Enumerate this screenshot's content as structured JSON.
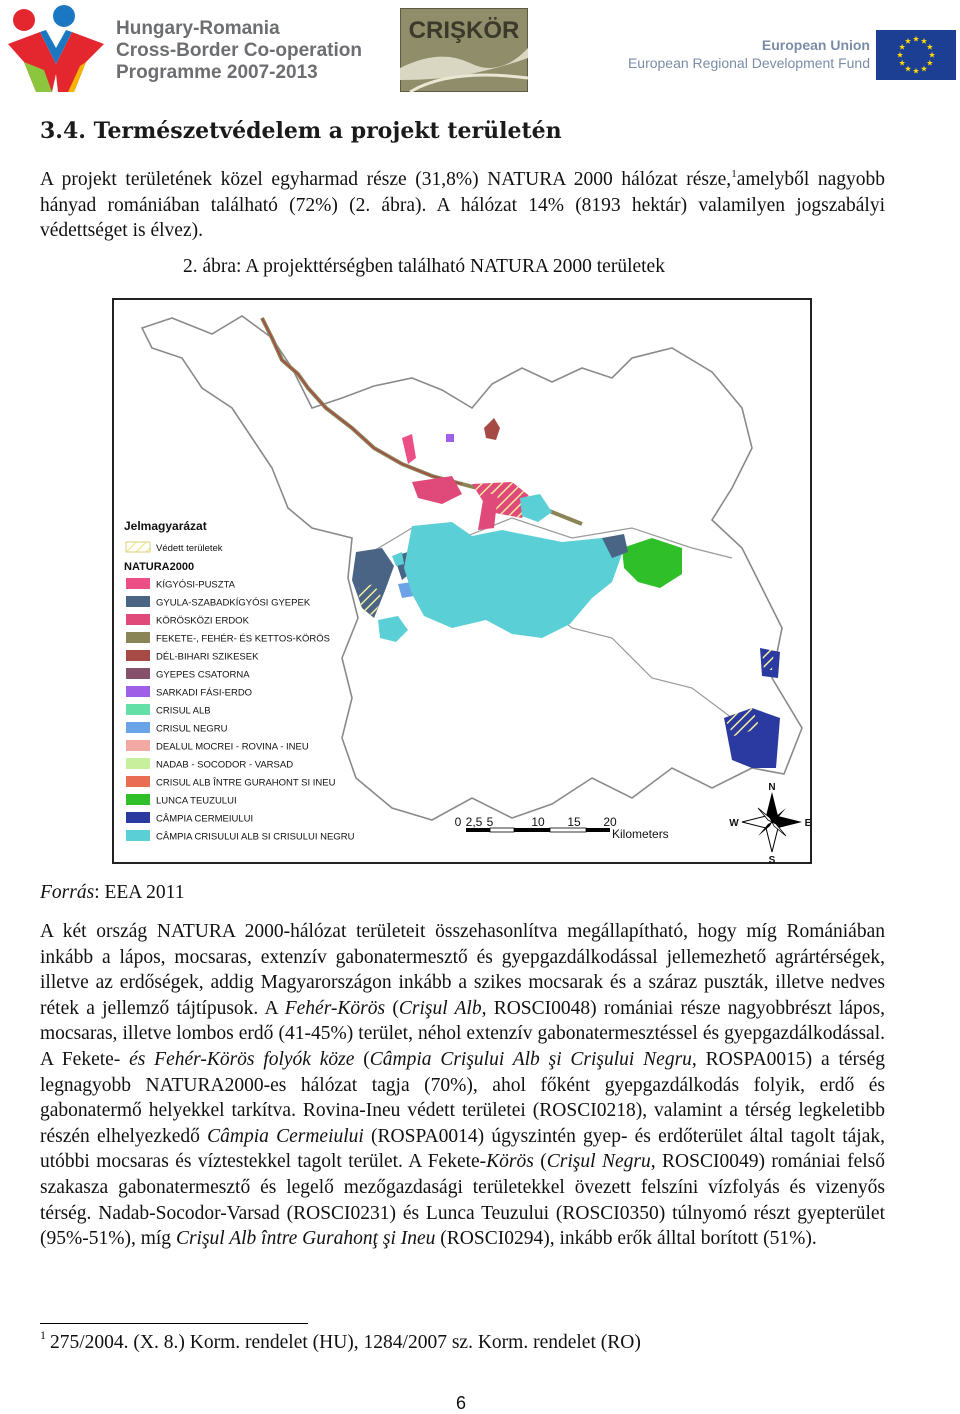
{
  "header": {
    "programme_lines": [
      "Hungary-Romania",
      "Cross-Border Co-operation",
      "Programme 2007-2013"
    ],
    "criskor_logo": "CRIŞKÖR",
    "eu_line1": "European Union",
    "eu_line2": "European Regional Development Fund",
    "icons": [
      "hungary-romania-programme-logo",
      "criskor-logo",
      "eu-flag-icon"
    ],
    "colors": {
      "hr_red": "#e4262f",
      "hr_blue": "#1a78c2",
      "hr_green": "#8cc63f",
      "hr_yellow": "#f5b400",
      "eu_blue": "#1c3f94",
      "eu_star": "#ffdd00"
    }
  },
  "section": {
    "number_title": "3.4. Természetvédelem a projekt területén"
  },
  "paragraph1": {
    "part1": "A projekt területének közel egyharmad része (31,8%) NATURA 2000 hálózat része,",
    "footnote_ref": "1",
    "part2": "amelyből nagyobb hányad romániában található (72%) (2. ábra). A hálózat 14% (8193 hektár) valamilyen jogszabályi védettséget is élvez)."
  },
  "figure": {
    "caption": "2. ábra: A projekttérségben található NATURA 2000 területek",
    "legend": {
      "title": "Jelmagyarázat",
      "protected_label": "Védett területek",
      "natura_title": "NATURA2000",
      "items": [
        {
          "label": "KÍGYÓSI-PUSZTA",
          "color": "#ec4f86"
        },
        {
          "label": "GYULA-SZABADKÍGYÓSI GYEPEK",
          "color": "#4a6485"
        },
        {
          "label": "KÖRÖSKÖZI ERDOK",
          "color": "#e04a7a"
        },
        {
          "label": "FEKETE-, FEHÉR- ÉS KETTOS-KÖRÖS",
          "color": "#8a8557"
        },
        {
          "label": "DÉL-BIHARI SZIKESEK",
          "color": "#a64a45"
        },
        {
          "label": "GYEPES CSATORNA",
          "color": "#84506a"
        },
        {
          "label": "SARKADI FÁSI-ERDO",
          "color": "#9f5fe6"
        },
        {
          "label": "CRISUL ALB",
          "color": "#64e0a6"
        },
        {
          "label": "CRISUL NEGRU",
          "color": "#6aa3e8"
        },
        {
          "label": "DEALUL MOCREI - ROVINA - INEU",
          "color": "#f2a9a3"
        },
        {
          "label": "NADAB - SOCODOR - VARSAD",
          "color": "#c8ef9b"
        },
        {
          "label": "CRISUL ALB ÎNTRE GURAHONT SI INEU",
          "color": "#e86d52"
        },
        {
          "label": "LUNCA TEUZULUI",
          "color": "#2fbf29"
        },
        {
          "label": "CÂMPIA CERMEIULUI",
          "color": "#2b3aa0"
        },
        {
          "label": "CÂMPIA CRISULUI ALB SI CRISULUI NEGRU",
          "color": "#5bcfd6"
        }
      ]
    },
    "scale": {
      "ticks": [
        "0",
        "2,5",
        "5",
        "10",
        "15",
        "20"
      ],
      "unit": "Kilometers"
    },
    "compass": {
      "n": "N",
      "s": "S",
      "e": "E",
      "w": "W"
    }
  },
  "source": {
    "label": "Forrás",
    "value": ": EEA 2011"
  },
  "paragraph2": [
    {
      "t": "A két ország NATURA 2000-hálózat területeit összehasonlítva megállapítható, hogy míg Romániában inkább a lápos, mocsaras, extenzív gabonatermesztő és gyepgazdálkodással jellemezhető agrártérségek, illetve az erdőségek, addig Magyarországon inkább a szikes mocsarak és a száraz puszták, illetve nedves rétek a jellemző tájtípusok. A ",
      "i": false
    },
    {
      "t": "Fehér-Körös",
      "i": true
    },
    {
      "t": " (",
      "i": false
    },
    {
      "t": "Crişul Alb",
      "i": true
    },
    {
      "t": ", ROSCI0048) romániai része nagyobbrészt lápos, mocsaras, illetve lombos erdő (41-45%) terület, néhol extenzív gabonatermesztéssel és gyepgazdálkodással. A Fekete- ",
      "i": false
    },
    {
      "t": "és Fehér-Körös folyók köze",
      "i": true
    },
    {
      "t": " (",
      "i": false
    },
    {
      "t": "Câmpia Crişului Alb şi Crişului Negru",
      "i": true
    },
    {
      "t": ", ROSPA0015) a térség legnagyobb NATURA2000-es hálózat tagja (70%), ahol főként gyepgazdálkodás folyik, erdő és gabonatermő helyekkel tarkítva. Rovina-Ineu védett területei (ROSCI0218), valamint a térség legkeletibb részén elhelyezkedő ",
      "i": false
    },
    {
      "t": "Câmpia Cermeiului",
      "i": true
    },
    {
      "t": " (ROSPA0014) úgyszintén gyep- és erdőterület által tagolt tájak, utóbbi mocsaras és víztestekkel tagolt terület. A Fekete-",
      "i": false
    },
    {
      "t": "Körös",
      "i": true
    },
    {
      "t": " (",
      "i": false
    },
    {
      "t": "Crişul Negru",
      "i": true
    },
    {
      "t": ", ROSCI0049) romániai felső szakasza gabonatermesztő és legelő mezőgazdasági területekkel övezett felszíni vízfolyás és vizenyős térség. Nadab-Socodor-Varsad (ROSCI0231) és Lunca Teuzului (ROSCI0350) túlnyomó részt gyepterület (95%-51%), míg ",
      "i": false
    },
    {
      "t": "Crişul Alb între Gurahonţ şi Ineu",
      "i": true
    },
    {
      "t": " (ROSCI0294), inkább erők álltal borított (51%).",
      "i": false
    }
  ],
  "footnote": {
    "mark": "1",
    "text": "275/2004. (X. 8.) Korm. rendelet (HU), 1284/2007 sz. Korm. rendelet (RO)"
  },
  "page_number": "6"
}
